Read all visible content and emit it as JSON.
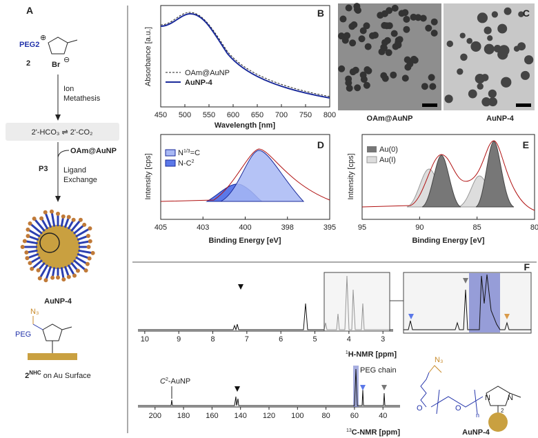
{
  "panelA": {
    "label": "A",
    "cation": "PEG2",
    "plus": "⊕",
    "number": "2",
    "anion": "Br",
    "minus": "⊖",
    "step1": [
      "Ion",
      "Metathesis"
    ],
    "equilibrium": "2'-HCO₃ ⇌ 2'-CO₂",
    "reagent": "OAm@AuNP",
    "step2label": "P3",
    "step2": [
      "Ligand",
      "Exchange"
    ],
    "particle": "AuNP-4",
    "nhc": {
      "azide": "N₃",
      "peg": "PEG",
      "name": "2",
      "sup": "NHC",
      "rest": " on Au Surface"
    }
  },
  "panelB": {
    "label": "B",
    "ylabel": "Absorbance [a.u.]",
    "xlabel": "Wavelength [nm]",
    "xlim": [
      450,
      800
    ],
    "xticks": [
      450,
      500,
      550,
      600,
      650,
      700,
      750,
      800
    ],
    "legend": [
      "OAm@AuNP",
      "AuNP-4"
    ]
  },
  "panelC": {
    "label": "C",
    "captions": [
      "OAm@AuNP",
      "AuNP-4"
    ]
  },
  "panelD": {
    "label": "D",
    "ylabel": "Intensity [cps]",
    "xlabel": "Binding Energy [eV]",
    "xlim": [
      405,
      395
    ],
    "xticks": [
      405,
      {
        "value": 402.5,
        "label": "403"
      },
      400,
      {
        "value": 397.5,
        "label": "398"
      },
      395
    ],
    "legend": [
      {
        "base": "N",
        "sup": "1/3",
        "rest": "=C"
      },
      {
        "base": "N-C",
        "sup": "2",
        "rest": ""
      }
    ]
  },
  "panelE": {
    "label": "E",
    "ylabel": "Intensity [cps]",
    "xlabel": "Binding Energy [eV]",
    "xlim": [
      95,
      80
    ],
    "xticks": [
      95,
      90,
      85,
      80
    ],
    "legend": [
      "Au(0)",
      "Au(I)"
    ]
  },
  "panelF": {
    "label": "F",
    "h1": {
      "xlim": [
        10.2,
        2.7
      ],
      "xticks": [
        10,
        9,
        8,
        7,
        6,
        5,
        4,
        3
      ],
      "sup": "1",
      "rest": "H-NMR [ppm]"
    },
    "c13": {
      "xlim": [
        212,
        28
      ],
      "xticks": [
        200,
        180,
        160,
        140,
        120,
        100,
        80,
        60,
        40
      ],
      "sup": "13",
      "rest": "C-NMR [ppm]",
      "annotation": {
        "sup": "2",
        "rest": "-AuNP",
        "base": "C"
      },
      "peg": "PEG chain"
    },
    "molecule": {
      "azide": "N₃",
      "o1": "O",
      "o2": "O",
      "n": "n",
      "n1": "N",
      "n2": "N",
      "c2": "2",
      "name": "AuNP-4"
    }
  }
}
